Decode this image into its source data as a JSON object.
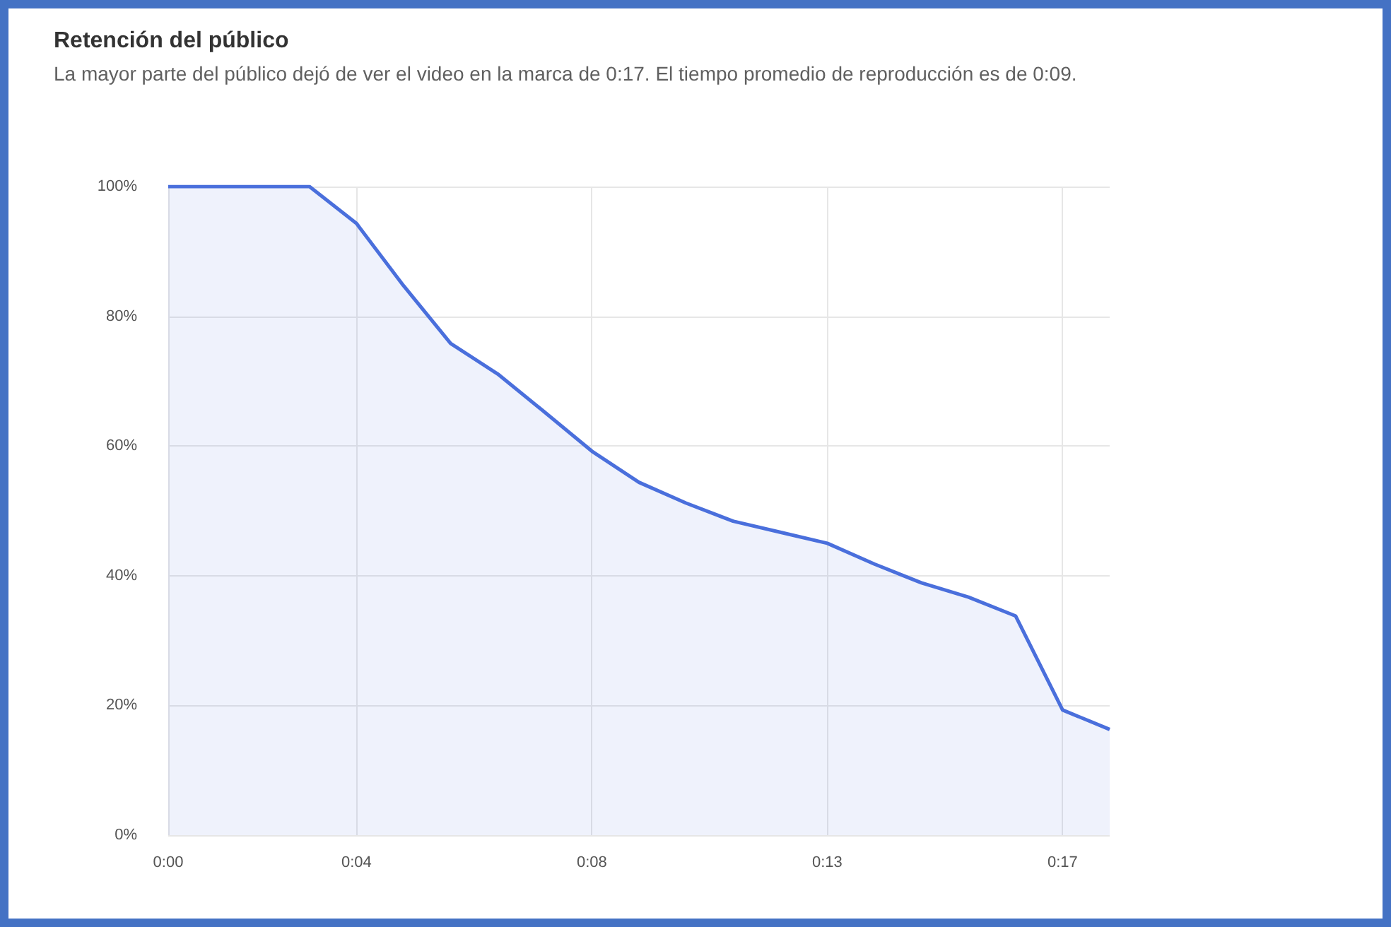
{
  "chart_data": {
    "type": "area",
    "title": "Retención del público",
    "subtitle": "La mayor parte del público dejó de ver el video en la marca de 0:17. El tiempo promedio de reproducción es de 0:09.",
    "x": [
      0,
      0.9,
      1.8,
      2.7,
      3.6,
      4.5,
      5.4,
      6.3,
      7.2,
      8.1,
      9,
      9.9,
      10.8,
      11.7,
      12.6,
      13.5,
      14.4,
      15.3,
      16.2,
      17.1,
      18
    ],
    "series": [
      {
        "color": "#4a6fdc",
        "values": [
          100,
          100,
          100,
          100,
          94.3,
          84.7,
          75.8,
          71.1,
          65.2,
          59.2,
          54.4,
          51.2,
          48.4,
          46.7,
          45,
          41.8,
          38.9,
          36.7,
          33.8,
          19.3,
          16.3
        ]
      }
    ],
    "xlim": [
      0,
      18
    ],
    "xticks": [
      {
        "value": 0,
        "label": "0:00"
      },
      {
        "value": 3.6,
        "label": "0:04"
      },
      {
        "value": 8.1,
        "label": "0:08"
      },
      {
        "value": 12.6,
        "label": "0:13"
      },
      {
        "value": 17.1,
        "label": "0:17"
      }
    ],
    "ylim": [
      0,
      100
    ],
    "yticks": [
      {
        "value": 0,
        "label": "0%"
      },
      {
        "value": 20,
        "label": "20%"
      },
      {
        "value": 40,
        "label": "40%"
      },
      {
        "value": 60,
        "label": "60%"
      },
      {
        "value": 80,
        "label": "80%"
      },
      {
        "value": 100,
        "label": "100%"
      }
    ],
    "grid": true,
    "marker": "none"
  }
}
